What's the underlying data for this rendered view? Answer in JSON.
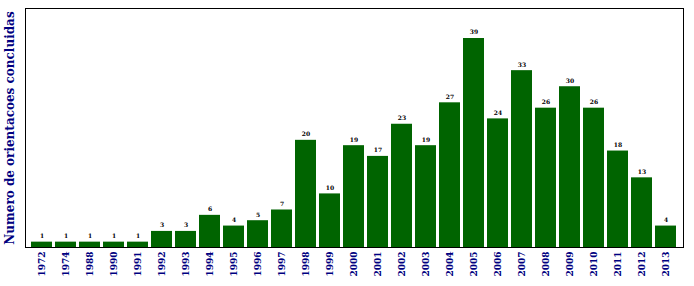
{
  "chart_data": {
    "type": "bar",
    "ylabel": "Numero de orientacoes concluidas",
    "categories": [
      "1972",
      "1974",
      "1988",
      "1990",
      "1991",
      "1992",
      "1993",
      "1994",
      "1995",
      "1996",
      "1997",
      "1998",
      "1999",
      "2000",
      "2001",
      "2002",
      "2003",
      "2004",
      "2005",
      "2006",
      "2007",
      "2008",
      "2009",
      "2010",
      "2011",
      "2012",
      "2013"
    ],
    "values": [
      1,
      1,
      1,
      1,
      1,
      3,
      3,
      6,
      4,
      5,
      7,
      20,
      10,
      19,
      17,
      23,
      19,
      27,
      39,
      24,
      33,
      26,
      30,
      26,
      18,
      13,
      4
    ],
    "color": "#006400",
    "ylim": [
      0,
      44.6
    ],
    "yticks": [],
    "grid": false,
    "data_labels": true,
    "tick_labels": "x"
  }
}
